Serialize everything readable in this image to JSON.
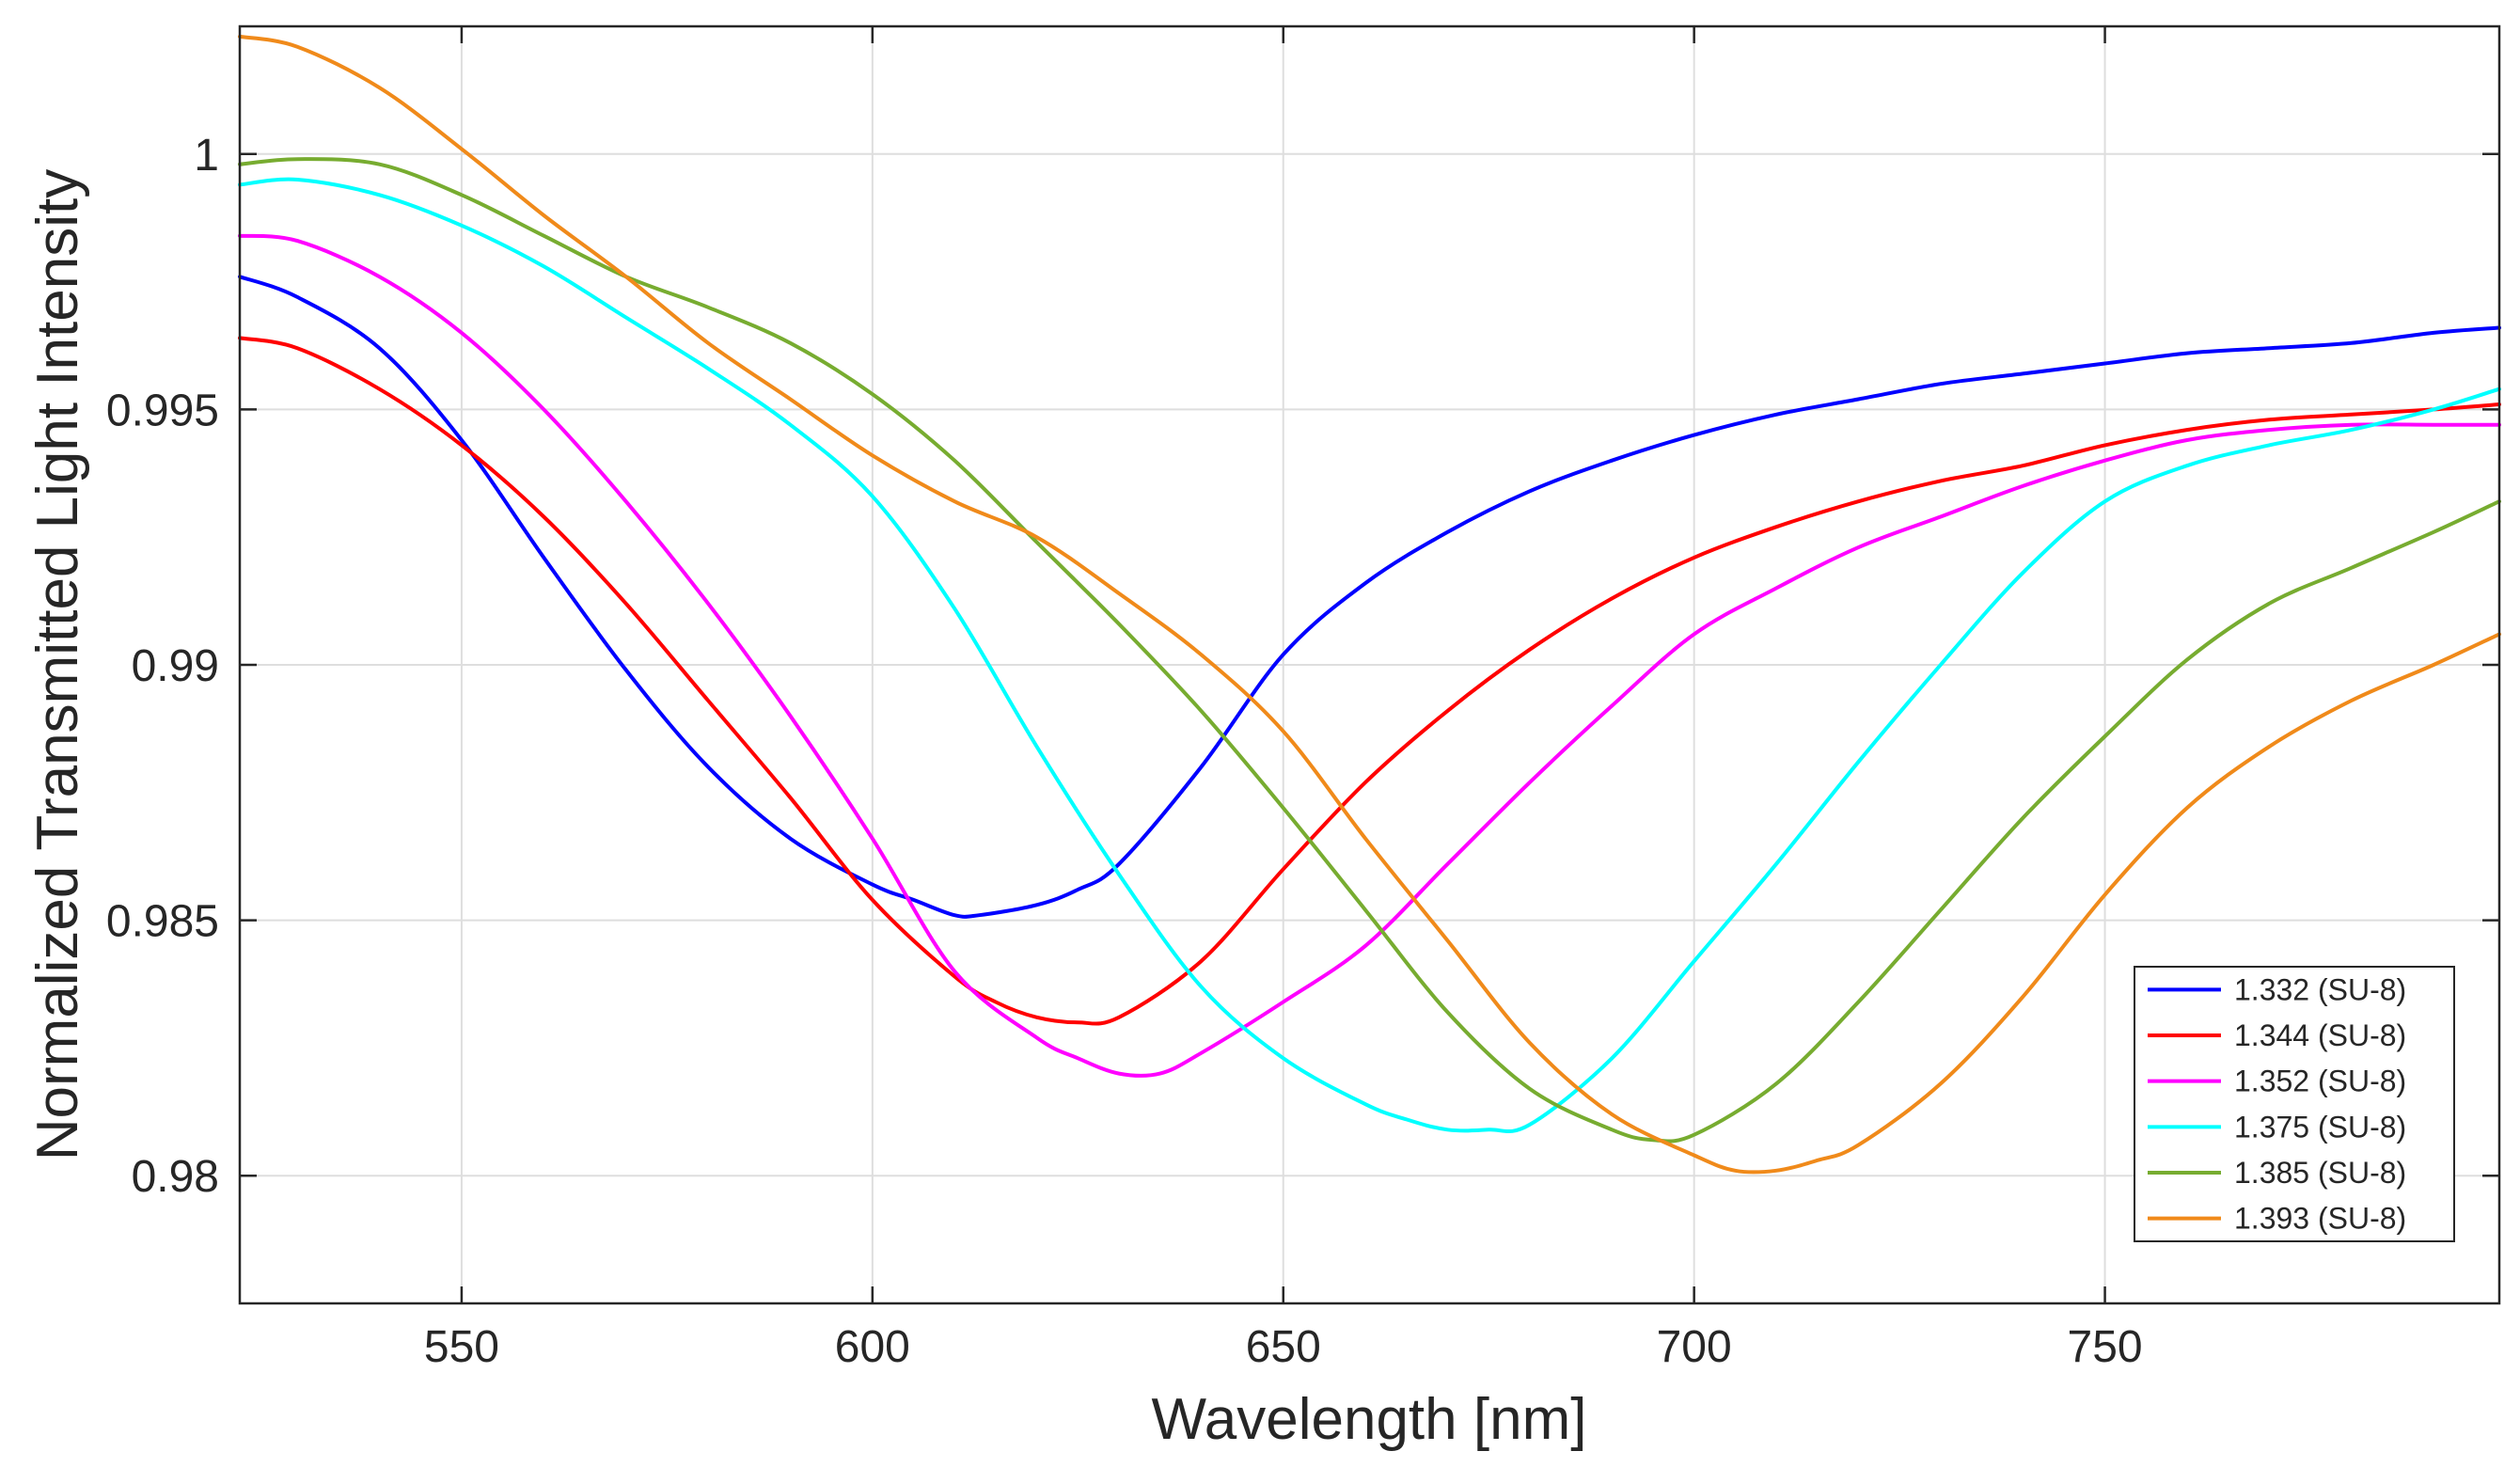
{
  "chart_data": {
    "type": "line",
    "title": "",
    "xlabel": "Wavelength [nm]",
    "ylabel": "Normalized Transmitted Light Intensity",
    "xlim": [
      523,
      798
    ],
    "ylim": [
      0.9775,
      1.0025
    ],
    "grid": true,
    "legend_position": "lower-right",
    "x_ticks": [
      550,
      600,
      650,
      700,
      750
    ],
    "x_tick_labels": [
      "550",
      "600",
      "650",
      "700",
      "750"
    ],
    "y_ticks": [
      0.98,
      0.985,
      0.99,
      0.995,
      1.0
    ],
    "y_tick_labels": [
      "0.98",
      "0.985",
      "0.99",
      "0.995",
      "1"
    ],
    "series": [
      {
        "name": "1.332 (SU-8)",
        "color": "#0000FF",
        "x": [
          523,
          530,
          540,
          550,
          560,
          570,
          580,
          590,
          600,
          605,
          610,
          613,
          620,
          625,
          630,
          640,
          650,
          660,
          670,
          680,
          690,
          700,
          710,
          720,
          730,
          740,
          750,
          760,
          770,
          780,
          790,
          798
        ],
        "y": [
          0.9976,
          0.9972,
          0.9962,
          0.9944,
          0.9921,
          0.9899,
          0.988,
          0.9866,
          0.9857,
          0.9854,
          0.9851,
          0.9851,
          0.9853,
          0.9856,
          0.9861,
          0.988,
          0.9902,
          0.9916,
          0.9926,
          0.9934,
          0.994,
          0.9945,
          0.9949,
          0.9952,
          0.9955,
          0.9957,
          0.9959,
          0.9961,
          0.9962,
          0.9963,
          0.9965,
          0.9966
        ]
      },
      {
        "name": "1.344 (SU-8)",
        "color": "#FF0000",
        "x": [
          523,
          530,
          540,
          550,
          560,
          570,
          580,
          590,
          600,
          610,
          615,
          620,
          625,
          630,
          640,
          650,
          660,
          670,
          680,
          690,
          700,
          710,
          720,
          730,
          740,
          750,
          760,
          770,
          780,
          790,
          798
        ],
        "y": [
          0.9964,
          0.9962,
          0.9954,
          0.9943,
          0.9929,
          0.9912,
          0.9893,
          0.9874,
          0.9854,
          0.9839,
          0.9834,
          0.9831,
          0.983,
          0.9831,
          0.9842,
          0.986,
          0.9877,
          0.9891,
          0.9903,
          0.9913,
          0.9921,
          0.9927,
          0.9932,
          0.9936,
          0.9939,
          0.9943,
          0.9946,
          0.9948,
          0.9949,
          0.995,
          0.9951
        ]
      },
      {
        "name": "1.352 (SU-8)",
        "color": "#FF00FF",
        "x": [
          523,
          530,
          540,
          550,
          560,
          570,
          580,
          590,
          600,
          610,
          620,
          625,
          630,
          635,
          640,
          650,
          660,
          670,
          680,
          690,
          700,
          710,
          720,
          730,
          740,
          750,
          760,
          770,
          780,
          790,
          798
        ],
        "y": [
          0.9984,
          0.9983,
          0.9976,
          0.9965,
          0.995,
          0.9932,
          0.9912,
          0.989,
          0.9866,
          0.984,
          0.9827,
          0.9823,
          0.982,
          0.982,
          0.9824,
          0.9834,
          0.9845,
          0.9861,
          0.9877,
          0.9892,
          0.9906,
          0.9915,
          0.9923,
          0.9929,
          0.9935,
          0.994,
          0.9944,
          0.9946,
          0.9947,
          0.9947,
          0.9947
        ]
      },
      {
        "name": "1.375 (SU-8)",
        "color": "#00FFFF",
        "x": [
          523,
          530,
          540,
          550,
          560,
          570,
          580,
          590,
          600,
          610,
          620,
          630,
          640,
          650,
          660,
          665,
          670,
          675,
          680,
          690,
          700,
          710,
          720,
          730,
          740,
          750,
          760,
          770,
          780,
          790,
          798
        ],
        "y": [
          0.9994,
          0.9995,
          0.9992,
          0.9986,
          0.9978,
          0.9968,
          0.9958,
          0.9947,
          0.9933,
          0.9911,
          0.9884,
          0.9859,
          0.9837,
          0.9823,
          0.9814,
          0.9811,
          0.9809,
          0.9809,
          0.981,
          0.9823,
          0.9842,
          0.9861,
          0.9881,
          0.99,
          0.9918,
          0.9932,
          0.9939,
          0.9943,
          0.9946,
          0.995,
          0.9954
        ]
      },
      {
        "name": "1.385 (SU-8)",
        "color": "#77AC30",
        "x": [
          523,
          530,
          540,
          550,
          560,
          570,
          580,
          590,
          600,
          610,
          620,
          630,
          640,
          650,
          660,
          670,
          680,
          690,
          695,
          700,
          710,
          720,
          730,
          740,
          750,
          760,
          770,
          780,
          790,
          798
        ],
        "y": [
          0.9998,
          0.9999,
          0.9998,
          0.9992,
          0.9984,
          0.9976,
          0.997,
          0.9963,
          0.9953,
          0.994,
          0.9924,
          0.9908,
          0.9891,
          0.9872,
          0.9852,
          0.9832,
          0.9817,
          0.9809,
          0.9807,
          0.9808,
          0.9818,
          0.9834,
          0.9852,
          0.987,
          0.9886,
          0.9901,
          0.9912,
          0.9919,
          0.9926,
          0.9932
        ]
      },
      {
        "name": "1.393 (SU-8)",
        "color": "#F08A1A",
        "x": [
          523,
          530,
          540,
          550,
          560,
          570,
          580,
          590,
          600,
          610,
          620,
          630,
          640,
          650,
          660,
          670,
          680,
          690,
          700,
          705,
          710,
          715,
          720,
          730,
          740,
          750,
          760,
          770,
          780,
          790,
          798
        ],
        "y": [
          1.0023,
          1.0021,
          1.0013,
          1.0001,
          0.9988,
          0.9976,
          0.9963,
          0.9952,
          0.9941,
          0.9932,
          0.9925,
          0.9914,
          0.9902,
          0.9887,
          0.9866,
          0.9846,
          0.9826,
          0.9812,
          0.9804,
          0.9801,
          0.9801,
          0.9803,
          0.9806,
          0.9818,
          0.9835,
          0.9855,
          0.9872,
          0.9884,
          0.9893,
          0.99,
          0.9906
        ]
      }
    ]
  }
}
